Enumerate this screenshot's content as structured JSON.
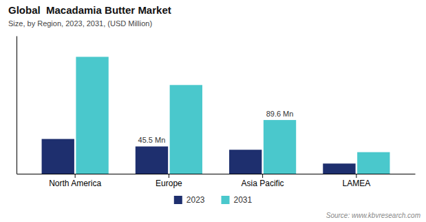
{
  "chart_data": {
    "type": "bar",
    "title": "Global  Macadamia Butter Market",
    "subtitle": "Size, by Region, 2023, 2031, (USD Million)",
    "source": "Source: www.kbvresearch.com",
    "categories": [
      "North America",
      "Europe",
      "Asia Pacific",
      "LAMEA"
    ],
    "series": [
      {
        "name": "2023",
        "color": "#1e2f6e",
        "values": [
          58.0,
          45.5,
          40.0,
          17.0
        ],
        "value_labels": [
          null,
          "45.5 Mn",
          null,
          null
        ]
      },
      {
        "name": "2031",
        "color": "#4ac8cc",
        "values": [
          195.0,
          148.0,
          89.6,
          36.0
        ],
        "value_labels": [
          null,
          null,
          "89.6 Mn",
          null
        ]
      }
    ],
    "ylim": [
      0,
      230
    ],
    "tick_labels": "x",
    "grid": false,
    "legend": "bottom"
  }
}
